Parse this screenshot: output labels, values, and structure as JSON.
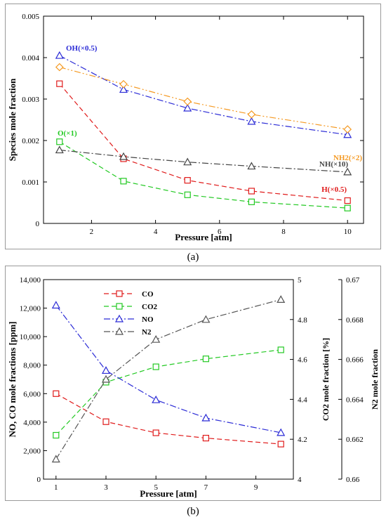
{
  "captions": {
    "a": "(a)",
    "b": "(b)"
  },
  "chart_data": [
    {
      "type": "line",
      "panel": "a",
      "xlabel": "Pressure [atm]",
      "ylabel": "Species mole fraction",
      "xlim": [
        0.5,
        10.5
      ],
      "ylim": [
        0,
        0.005
      ],
      "x_ticks": [
        "2",
        "4",
        "6",
        "8",
        "10"
      ],
      "y_ticks": [
        "0",
        "0.001",
        "0.002",
        "0.003",
        "0.004",
        "0.005"
      ],
      "x": [
        1,
        3,
        5,
        7,
        10
      ],
      "series": [
        {
          "name": "OH(×0.5)",
          "values": [
            0.00405,
            0.00323,
            0.00278,
            0.00246,
            0.00214
          ],
          "color": "#2b2bd6",
          "marker": "triangle",
          "dash": "dashdot"
        },
        {
          "name": "NH2(×2)",
          "values": [
            0.00377,
            0.00336,
            0.00294,
            0.00263,
            0.00227
          ],
          "color": "#f59a23",
          "marker": "diamond",
          "dash": "dashdotdot"
        },
        {
          "name": "H(×0.5)",
          "values": [
            0.00337,
            0.00156,
            0.00104,
            0.00078,
            0.00055
          ],
          "color": "#e01b1b",
          "marker": "square",
          "dash": "dash"
        },
        {
          "name": "O(×1)",
          "values": [
            0.00197,
            0.00102,
            0.00069,
            0.00052,
            0.00037
          ],
          "color": "#22c922",
          "marker": "square",
          "dash": "dash"
        },
        {
          "name": "NH(×10)",
          "values": [
            0.00177,
            0.00161,
            0.00148,
            0.00138,
            0.00124
          ],
          "color": "#444444",
          "marker": "triangle",
          "dash": "dashdot"
        }
      ]
    },
    {
      "type": "line",
      "panel": "b",
      "xlabel": "Pressure [atm]",
      "ylabel_left": "NO, CO mole fractions [ppm]",
      "ylabel_right1": "CO2 mole fraction [%]",
      "ylabel_right2": "N2 mole fraction",
      "xlim": [
        0.5,
        10.5
      ],
      "ylim_left": [
        0,
        14000
      ],
      "ylim_right1": [
        4,
        5
      ],
      "ylim_right2": [
        0.66,
        0.67
      ],
      "x_ticks": [
        "1",
        "3",
        "5",
        "7",
        "9"
      ],
      "y_ticks_left": [
        "0",
        "2,000",
        "4,000",
        "6,000",
        "8,000",
        "10,000",
        "12,000",
        "14,000"
      ],
      "y_ticks_right1": [
        "4",
        "4.2",
        "4.4",
        "4.6",
        "4.8",
        "5"
      ],
      "y_ticks_right2": [
        "0.66",
        "0.662",
        "0.664",
        "0.666",
        "0.668",
        "0.67"
      ],
      "x": [
        1,
        3,
        5,
        7,
        10
      ],
      "series": [
        {
          "name": "CO",
          "axis": "left",
          "values": [
            6000,
            4030,
            3250,
            2880,
            2460
          ],
          "color": "#e01b1b",
          "marker": "square",
          "dash": "dash"
        },
        {
          "name": "CO2",
          "axis": "right1",
          "values": [
            4.22,
            4.486,
            4.563,
            4.603,
            4.648
          ],
          "color": "#22c922",
          "marker": "square",
          "dash": "dash"
        },
        {
          "name": "NO",
          "axis": "left",
          "values": [
            12200,
            7620,
            5560,
            4290,
            3260
          ],
          "color": "#2b2bd6",
          "marker": "triangle",
          "dash": "dashdot"
        },
        {
          "name": "N2",
          "axis": "right2",
          "values": [
            0.661,
            0.665,
            0.667,
            0.668,
            0.669
          ],
          "color": "#555555",
          "marker": "triangle",
          "dash": "dashdot"
        }
      ]
    }
  ]
}
